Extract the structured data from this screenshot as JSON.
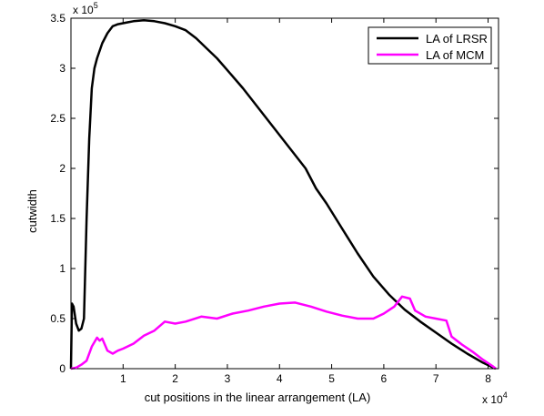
{
  "chart_data": {
    "type": "line",
    "xlabel": "cut positions in the linear arrangement (LA)",
    "ylabel": "cutwidth",
    "x_multiplier_label": "x 10",
    "x_multiplier_exp": "4",
    "y_multiplier_label": "x 10",
    "y_multiplier_exp": "5",
    "xlim": [
      0,
      8.2
    ],
    "ylim": [
      0,
      3.5
    ],
    "x_ticks": [
      "1",
      "2",
      "3",
      "4",
      "5",
      "6",
      "7",
      "8"
    ],
    "y_ticks": [
      "0",
      "0.5",
      "1",
      "1.5",
      "2",
      "2.5",
      "3",
      "3.5"
    ],
    "x_tick_values": [
      1,
      2,
      3,
      4,
      5,
      6,
      7,
      8
    ],
    "y_tick_values": [
      0,
      0.5,
      1,
      1.5,
      2,
      2.5,
      3,
      3.5
    ],
    "grid": false,
    "legend_position": "top-right",
    "series": [
      {
        "name": "LA of LRSR",
        "color": "#000000",
        "x": [
          0.0,
          0.02,
          0.05,
          0.1,
          0.15,
          0.2,
          0.25,
          0.3,
          0.35,
          0.4,
          0.45,
          0.5,
          0.6,
          0.7,
          0.8,
          0.9,
          1.0,
          1.1,
          1.2,
          1.4,
          1.6,
          1.8,
          2.0,
          2.2,
          2.4,
          2.6,
          2.8,
          3.0,
          3.3,
          3.6,
          3.9,
          4.2,
          4.5,
          4.7,
          4.9,
          5.2,
          5.5,
          5.8,
          6.1,
          6.4,
          6.7,
          7.0,
          7.3,
          7.6,
          7.9,
          8.1,
          8.15
        ],
        "y": [
          0.0,
          0.65,
          0.62,
          0.45,
          0.38,
          0.4,
          0.5,
          1.5,
          2.3,
          2.8,
          3.0,
          3.1,
          3.25,
          3.35,
          3.42,
          3.44,
          3.45,
          3.46,
          3.47,
          3.48,
          3.47,
          3.45,
          3.42,
          3.38,
          3.3,
          3.2,
          3.1,
          2.98,
          2.8,
          2.6,
          2.4,
          2.2,
          2.0,
          1.8,
          1.65,
          1.4,
          1.15,
          0.92,
          0.74,
          0.59,
          0.47,
          0.36,
          0.25,
          0.15,
          0.06,
          0.01,
          0.0
        ]
      },
      {
        "name": "LA of MCM",
        "color": "#ff00ff",
        "x": [
          0.0,
          0.1,
          0.2,
          0.3,
          0.4,
          0.5,
          0.55,
          0.6,
          0.7,
          0.8,
          0.9,
          1.0,
          1.2,
          1.4,
          1.6,
          1.8,
          2.0,
          2.2,
          2.5,
          2.8,
          3.1,
          3.4,
          3.7,
          4.0,
          4.3,
          4.6,
          4.9,
          5.2,
          5.5,
          5.8,
          6.0,
          6.2,
          6.35,
          6.5,
          6.6,
          6.8,
          7.0,
          7.2,
          7.3,
          7.5,
          7.7,
          7.9,
          8.1,
          8.15
        ],
        "y": [
          0.0,
          0.01,
          0.04,
          0.08,
          0.22,
          0.31,
          0.28,
          0.3,
          0.18,
          0.15,
          0.18,
          0.2,
          0.25,
          0.33,
          0.38,
          0.47,
          0.45,
          0.47,
          0.52,
          0.5,
          0.55,
          0.58,
          0.62,
          0.65,
          0.66,
          0.62,
          0.57,
          0.53,
          0.5,
          0.5,
          0.55,
          0.62,
          0.72,
          0.7,
          0.58,
          0.52,
          0.5,
          0.48,
          0.32,
          0.24,
          0.17,
          0.09,
          0.02,
          0.0
        ]
      }
    ]
  }
}
